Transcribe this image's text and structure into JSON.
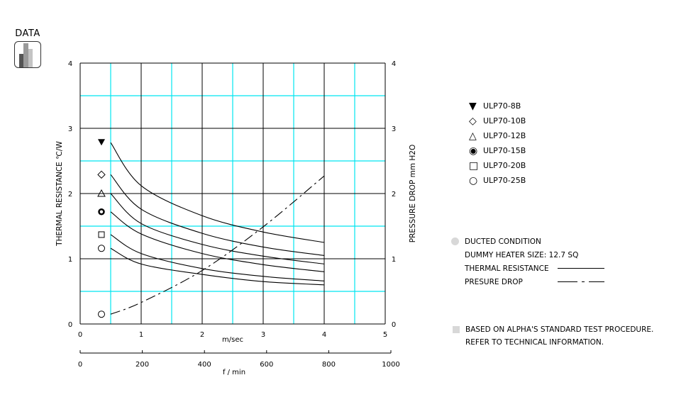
{
  "header": {
    "section_label": "DATA",
    "icon": "bar-chart-icon"
  },
  "chart_data": {
    "type": "line",
    "title": "",
    "xlabel": "m/sec",
    "xlabel_secondary": "f / min",
    "ylabel": "THERMAL RESISTANCE  ℃/W",
    "ylabel_right": "PRESSURE DROP   mm H2O",
    "xlim": [
      0,
      5
    ],
    "ylim": [
      0,
      4
    ],
    "ylim_right": [
      0,
      4
    ],
    "x_ticks": [
      "0",
      "1",
      "2",
      "3",
      "4",
      "5"
    ],
    "x_ticks_secondary": [
      "0",
      "200",
      "400",
      "600",
      "800",
      "1000"
    ],
    "y_ticks": [
      "0",
      "1",
      "2",
      "3",
      "4"
    ],
    "y_ticks_right": [
      "0",
      "1",
      "2",
      "3",
      "4"
    ],
    "grid": true,
    "x": [
      0.5,
      1,
      2,
      3,
      4
    ],
    "series": [
      {
        "name": "ULP70-8B",
        "marker": "filled-triangle-down",
        "axis": "left",
        "style": "solid",
        "values": [
          2.78,
          2.12,
          1.66,
          1.41,
          1.25
        ]
      },
      {
        "name": "ULP70-10B",
        "marker": "diamond",
        "axis": "left",
        "style": "solid",
        "values": [
          2.29,
          1.76,
          1.39,
          1.18,
          1.05
        ]
      },
      {
        "name": "ULP70-12B",
        "marker": "triangle-up",
        "axis": "left",
        "style": "solid",
        "values": [
          2.0,
          1.54,
          1.22,
          1.04,
          0.92
        ]
      },
      {
        "name": "ULP70-15B",
        "marker": "bold-circle",
        "axis": "left",
        "style": "solid",
        "values": [
          1.72,
          1.38,
          1.08,
          0.91,
          0.8
        ]
      },
      {
        "name": "ULP70-20B",
        "marker": "square",
        "axis": "left",
        "style": "solid",
        "values": [
          1.37,
          1.08,
          0.85,
          0.73,
          0.66
        ]
      },
      {
        "name": "ULP70-25B",
        "marker": "circle",
        "axis": "left",
        "style": "solid",
        "values": [
          1.16,
          0.92,
          0.76,
          0.65,
          0.6
        ]
      },
      {
        "name": "Pressure Drop",
        "marker": "circle",
        "axis": "right",
        "style": "dash-dot",
        "values": [
          0.15,
          0.33,
          0.82,
          1.49,
          2.27
        ]
      }
    ],
    "legend_position": "right",
    "annotations": [
      "DUCTED CONDITION",
      "DUMMY HEATER SIZE: 12.7 SQ",
      "THERMAL RESISTANCE (solid line)",
      "PRESURE DROP (dash-dot line)",
      "BASED ON ALPHA'S STANDARD TEST PROCEDURE.",
      "REFER TO TECHNICAL INFORMATION."
    ]
  },
  "legend": {
    "items": [
      {
        "symbol": "▼",
        "label": "ULP70-8B"
      },
      {
        "symbol": "◇",
        "label": "ULP70-10B"
      },
      {
        "symbol": "△",
        "label": "ULP70-12B"
      },
      {
        "symbol": "◉",
        "label": "ULP70-15B"
      },
      {
        "symbol": "□",
        "label": "ULP70-20B"
      },
      {
        "symbol": "○",
        "label": "ULP70-25B"
      }
    ]
  },
  "conditions": {
    "title": "DUCTED CONDITION",
    "heater": "DUMMY HEATER SIZE: 12.7 SQ",
    "thermal_label": "THERMAL RESISTANCE",
    "pressure_label": "PRESURE DROP"
  },
  "footnote": {
    "line1": "BASED ON ALPHA'S STANDARD TEST PROCEDURE.",
    "line2": "REFER TO TECHNICAL INFORMATION."
  },
  "colors": {
    "grid_major": "#000000",
    "grid_minor": "#00e5f0",
    "bullet": "#d8d8d8"
  }
}
